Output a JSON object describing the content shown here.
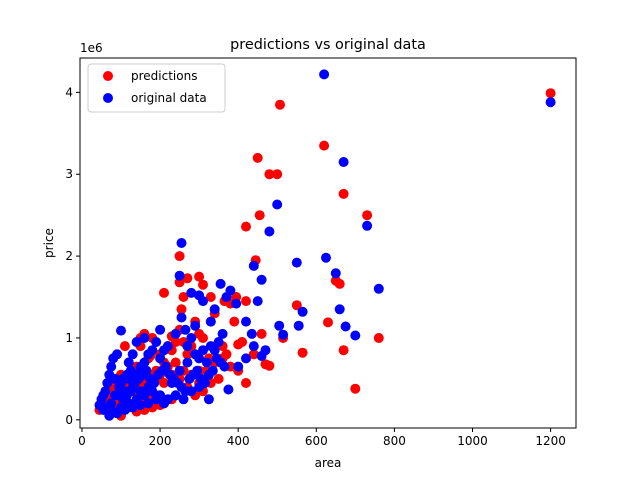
{
  "chart_data": {
    "type": "scatter",
    "title": "predictions vs original data",
    "xlabel": "area",
    "ylabel": "price",
    "y_scale_label": "1e6",
    "xlim": [
      -5,
      1265
    ],
    "ylim": [
      -0.1,
      4.42
    ],
    "x_ticks": [
      0,
      200,
      400,
      600,
      800,
      1000,
      1200
    ],
    "x_tick_labels": [
      "0",
      "200",
      "400",
      "600",
      "800",
      "1000",
      "1200"
    ],
    "y_ticks": [
      0,
      1,
      2,
      3,
      4
    ],
    "y_tick_labels": [
      "0",
      "1",
      "2",
      "3",
      "4"
    ],
    "grid": false,
    "legend_position": "upper-left",
    "series": [
      {
        "name": "predictions",
        "color": "#ff0000",
        "points": [
          [
            1200,
            3.99
          ],
          [
            507,
            3.85
          ],
          [
            620,
            3.35
          ],
          [
            450,
            3.2
          ],
          [
            480,
            3.0
          ],
          [
            500,
            3.0
          ],
          [
            670,
            2.76
          ],
          [
            730,
            2.5
          ],
          [
            455,
            2.5
          ],
          [
            420,
            2.36
          ],
          [
            445,
            1.95
          ],
          [
            250,
            2.0
          ],
          [
            270,
            1.73
          ],
          [
            300,
            1.75
          ],
          [
            250,
            1.68
          ],
          [
            310,
            1.65
          ],
          [
            650,
            1.7
          ],
          [
            660,
            1.66
          ],
          [
            210,
            1.55
          ],
          [
            260,
            1.5
          ],
          [
            330,
            1.5
          ],
          [
            365,
            1.45
          ],
          [
            395,
            1.5
          ],
          [
            420,
            1.45
          ],
          [
            550,
            1.4
          ],
          [
            340,
            1.3
          ],
          [
            380,
            1.42
          ],
          [
            255,
            1.35
          ],
          [
            390,
            1.2
          ],
          [
            630,
            1.19
          ],
          [
            760,
            1.0
          ],
          [
            700,
            0.38
          ],
          [
            670,
            0.85
          ],
          [
            565,
            0.82
          ],
          [
            515,
            1.0
          ],
          [
            460,
            1.05
          ],
          [
            470,
            0.68
          ],
          [
            480,
            0.66
          ],
          [
            420,
            0.45
          ],
          [
            440,
            0.8
          ],
          [
            400,
            0.92
          ],
          [
            410,
            0.95
          ],
          [
            360,
            0.75
          ],
          [
            370,
            0.8
          ],
          [
            330,
            1.2
          ],
          [
            310,
            1.0
          ],
          [
            300,
            1.05
          ],
          [
            290,
            1.2
          ],
          [
            280,
            0.9
          ],
          [
            270,
            0.8
          ],
          [
            250,
            1.1
          ],
          [
            240,
            0.95
          ],
          [
            230,
            0.85
          ],
          [
            220,
            0.9
          ],
          [
            210,
            0.7
          ],
          [
            200,
            0.8
          ],
          [
            190,
            0.6
          ],
          [
            180,
            1.0
          ],
          [
            170,
            0.75
          ],
          [
            160,
            1.05
          ],
          [
            150,
            0.9
          ],
          [
            140,
            0.65
          ],
          [
            130,
            0.6
          ],
          [
            120,
            0.7
          ],
          [
            110,
            0.9
          ],
          [
            100,
            0.55
          ],
          [
            95,
            0.45
          ],
          [
            90,
            0.35
          ],
          [
            85,
            0.3
          ],
          [
            80,
            0.4
          ],
          [
            75,
            0.25
          ],
          [
            70,
            0.3
          ],
          [
            65,
            0.2
          ],
          [
            60,
            0.15
          ],
          [
            55,
            0.25
          ],
          [
            50,
            0.2
          ],
          [
            45,
            0.12
          ],
          [
            60,
            0.3
          ],
          [
            110,
            0.3
          ],
          [
            130,
            0.35
          ],
          [
            150,
            0.4
          ],
          [
            170,
            0.45
          ],
          [
            190,
            0.5
          ],
          [
            210,
            0.45
          ],
          [
            230,
            0.55
          ],
          [
            250,
            0.5
          ],
          [
            270,
            0.4
          ],
          [
            290,
            0.3
          ],
          [
            310,
            0.35
          ],
          [
            330,
            0.45
          ],
          [
            350,
            0.5
          ],
          [
            150,
            0.2
          ],
          [
            170,
            0.25
          ],
          [
            190,
            0.3
          ],
          [
            210,
            0.2
          ],
          [
            230,
            0.25
          ],
          [
            100,
            0.05
          ],
          [
            120,
            0.15
          ],
          [
            140,
            0.1
          ],
          [
            160,
            0.12
          ],
          [
            180,
            0.15
          ],
          [
            200,
            0.18
          ],
          [
            80,
            0.1
          ],
          [
            90,
            0.2
          ],
          [
            200,
            0.55
          ],
          [
            220,
            0.65
          ],
          [
            240,
            0.7
          ],
          [
            260,
            0.6
          ],
          [
            280,
            0.55
          ],
          [
            300,
            0.45
          ],
          [
            320,
            0.6
          ],
          [
            340,
            0.7
          ],
          [
            360,
            0.9
          ],
          [
            380,
            0.65
          ],
          [
            400,
            0.6
          ],
          [
            140,
            0.4
          ],
          [
            160,
            0.5
          ],
          [
            180,
            0.55
          ],
          [
            120,
            0.45
          ],
          [
            130,
            0.5
          ],
          [
            230,
            1.02
          ],
          [
            260,
            0.95
          ],
          [
            150,
            1.0
          ],
          [
            175,
            0.78
          ],
          [
            300,
            0.6
          ],
          [
            325,
            0.75
          ]
        ]
      },
      {
        "name": "original data",
        "color": "#0000ff",
        "points": [
          [
            1200,
            3.88
          ],
          [
            620,
            4.22
          ],
          [
            670,
            3.15
          ],
          [
            500,
            2.63
          ],
          [
            480,
            2.3
          ],
          [
            730,
            2.37
          ],
          [
            255,
            2.16
          ],
          [
            250,
            1.76
          ],
          [
            440,
            1.88
          ],
          [
            625,
            1.98
          ],
          [
            550,
            1.92
          ],
          [
            650,
            1.79
          ],
          [
            460,
            1.71
          ],
          [
            760,
            1.6
          ],
          [
            355,
            1.66
          ],
          [
            380,
            1.58
          ],
          [
            370,
            1.5
          ],
          [
            395,
            1.42
          ],
          [
            300,
            1.52
          ],
          [
            280,
            1.55
          ],
          [
            310,
            1.45
          ],
          [
            340,
            1.35
          ],
          [
            255,
            1.25
          ],
          [
            265,
            1.1
          ],
          [
            290,
            1.15
          ],
          [
            330,
            1.2
          ],
          [
            420,
            1.2
          ],
          [
            450,
            1.45
          ],
          [
            435,
            1.05
          ],
          [
            505,
            1.15
          ],
          [
            515,
            1.04
          ],
          [
            565,
            1.32
          ],
          [
            555,
            1.15
          ],
          [
            660,
            1.35
          ],
          [
            675,
            1.14
          ],
          [
            700,
            1.03
          ],
          [
            470,
            0.85
          ],
          [
            460,
            0.78
          ],
          [
            440,
            0.9
          ],
          [
            420,
            0.75
          ],
          [
            400,
            0.65
          ],
          [
            360,
            1.05
          ],
          [
            350,
            0.95
          ],
          [
            340,
            0.85
          ],
          [
            320,
            0.7
          ],
          [
            300,
            0.75
          ],
          [
            280,
            1.0
          ],
          [
            270,
            0.9
          ],
          [
            240,
            1.05
          ],
          [
            220,
            0.9
          ],
          [
            200,
            1.1
          ],
          [
            190,
            0.95
          ],
          [
            180,
            0.85
          ],
          [
            170,
            0.8
          ],
          [
            160,
            1.0
          ],
          [
            140,
            0.95
          ],
          [
            130,
            0.8
          ],
          [
            120,
            0.7
          ],
          [
            100,
            1.09
          ],
          [
            90,
            0.8
          ],
          [
            80,
            0.75
          ],
          [
            75,
            0.65
          ],
          [
            70,
            0.55
          ],
          [
            65,
            0.45
          ],
          [
            60,
            0.35
          ],
          [
            55,
            0.3
          ],
          [
            50,
            0.25
          ],
          [
            45,
            0.18
          ],
          [
            55,
            0.12
          ],
          [
            65,
            0.15
          ],
          [
            75,
            0.2
          ],
          [
            85,
            0.3
          ],
          [
            95,
            0.4
          ],
          [
            105,
            0.5
          ],
          [
            115,
            0.55
          ],
          [
            125,
            0.6
          ],
          [
            135,
            0.45
          ],
          [
            145,
            0.5
          ],
          [
            155,
            0.55
          ],
          [
            165,
            0.6
          ],
          [
            175,
            0.5
          ],
          [
            185,
            0.45
          ],
          [
            195,
            0.55
          ],
          [
            205,
            0.6
          ],
          [
            215,
            0.65
          ],
          [
            225,
            0.55
          ],
          [
            235,
            0.5
          ],
          [
            245,
            0.45
          ],
          [
            255,
            0.4
          ],
          [
            265,
            0.35
          ],
          [
            275,
            0.5
          ],
          [
            285,
            0.55
          ],
          [
            295,
            0.6
          ],
          [
            305,
            0.5
          ],
          [
            315,
            0.45
          ],
          [
            325,
            0.55
          ],
          [
            335,
            0.6
          ],
          [
            345,
            0.75
          ],
          [
            355,
            0.7
          ],
          [
            365,
            0.65
          ],
          [
            375,
            0.37
          ],
          [
            325,
            0.25
          ],
          [
            80,
            0.1
          ],
          [
            100,
            0.15
          ],
          [
            120,
            0.2
          ],
          [
            140,
            0.25
          ],
          [
            160,
            0.3
          ],
          [
            180,
            0.35
          ],
          [
            200,
            0.3
          ],
          [
            220,
            0.25
          ],
          [
            240,
            0.3
          ],
          [
            260,
            0.25
          ],
          [
            280,
            0.35
          ],
          [
            300,
            0.4
          ],
          [
            70,
            0.05
          ],
          [
            90,
            0.08
          ],
          [
            110,
            0.12
          ],
          [
            130,
            0.15
          ],
          [
            150,
            0.18
          ],
          [
            170,
            0.2
          ],
          [
            110,
            0.35
          ],
          [
            130,
            0.4
          ],
          [
            150,
            0.35
          ],
          [
            170,
            0.4
          ],
          [
            190,
            0.25
          ],
          [
            210,
            0.2
          ],
          [
            95,
            0.3
          ],
          [
            105,
            0.25
          ],
          [
            115,
            0.3
          ],
          [
            125,
            0.35
          ],
          [
            230,
            0.45
          ],
          [
            250,
            0.6
          ],
          [
            270,
            0.7
          ],
          [
            290,
            0.8
          ],
          [
            310,
            0.85
          ],
          [
            330,
            0.9
          ],
          [
            200,
            0.75
          ],
          [
            210,
            0.85
          ],
          [
            150,
            0.65
          ],
          [
            160,
            0.7
          ],
          [
            140,
            0.55
          ],
          [
            120,
            0.5
          ],
          [
            100,
            0.45
          ],
          [
            85,
            0.5
          ]
        ]
      }
    ]
  }
}
